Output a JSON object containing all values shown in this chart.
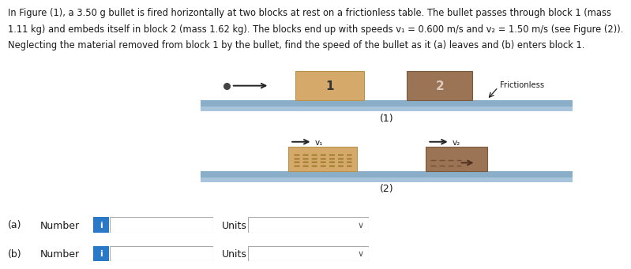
{
  "text_line1": "In Figure (1), a 3.50 g bullet is fired horizontally at two blocks at rest on a frictionless table. The bullet passes through block 1 (mass",
  "text_line2": "1.11 kg) and embeds itself in block 2 (mass 1.62 kg). The blocks end up with speeds v₁ = 0.600 m/s and v₂ = 1.50 m/s (see Figure (2)).",
  "text_line3": "Neglecting the material removed from block 1 by the bullet, find the speed of the bullet as it (a) leaves and (b) enters block 1.",
  "fig_label_1": "(1)",
  "fig_label_2": "(2)",
  "frictionless_label": "Frictionless",
  "block1_label": "1",
  "block2_label": "2",
  "v1_label": "v₁",
  "v2_label": "v₂",
  "a_label": "(a)",
  "b_label": "(b)",
  "number_label": "Number",
  "units_label": "Units",
  "info_color": "#2979C8",
  "block1_face": "#D4A96A",
  "block1_edge": "#B8924A",
  "block2_face": "#9B7355",
  "block2_edge": "#7A5A3E",
  "table_top_color": "#8AAEC8",
  "table_bot_color": "#A8C4DC",
  "background_color": "#FFFFFF",
  "bullet_color": "#444444",
  "text_color": "#1A1A1A",
  "arrow_color": "#222222",
  "dashed_color": "#8B6914",
  "box_edge_color": "#AAAAAA"
}
